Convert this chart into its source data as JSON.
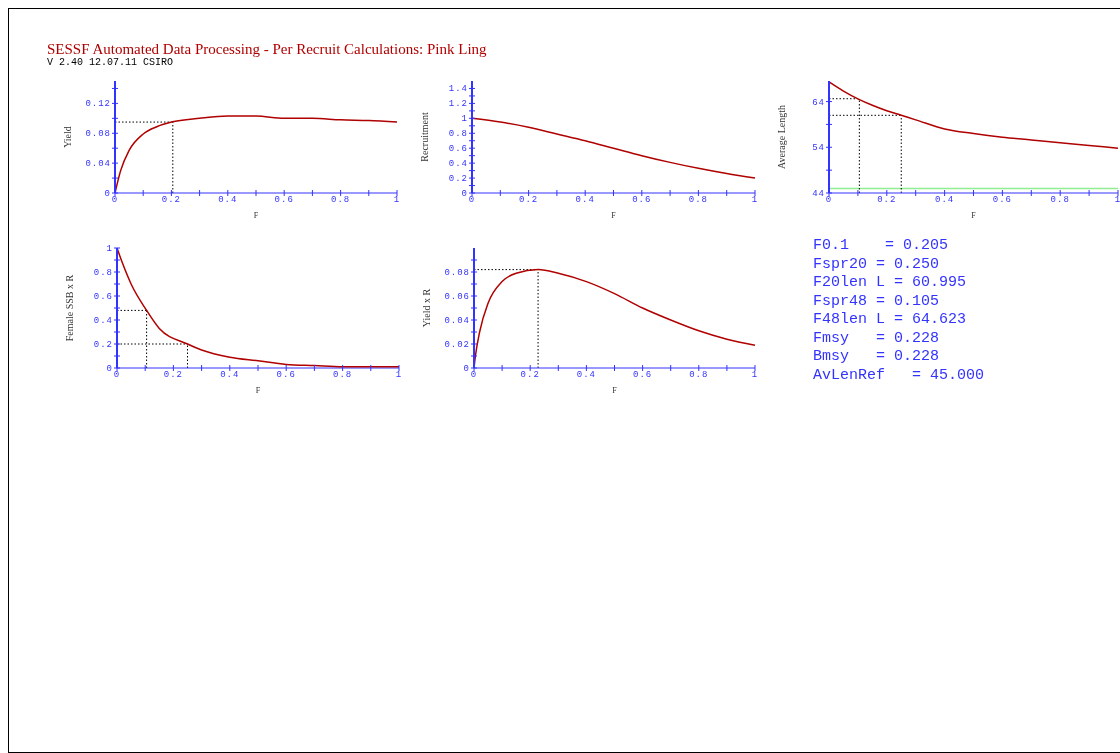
{
  "chart_data": [
    {
      "type": "line",
      "title": "SESSF Automated Data Processing - Per Recruit Calculations: Pink Ling",
      "subtitle": "V 2.40 12.07.11 CSIRO",
      "xlabel": "F",
      "ylabel": "Yield",
      "color": "#b00000",
      "x": [
        0,
        0.02,
        0.05,
        0.1,
        0.15,
        0.2,
        0.3,
        0.4,
        0.5,
        0.6,
        0.7,
        0.8,
        0.9,
        1
      ],
      "values": [
        0,
        0.03,
        0.057,
        0.079,
        0.089,
        0.095,
        0.1,
        0.103,
        0.103,
        0.1,
        0.1,
        0.098,
        0.097,
        0.095
      ],
      "xlim": [
        0,
        1
      ],
      "ylim": [
        0,
        0.15
      ],
      "xticks": [
        0,
        {
          "value": 0.1,
          "label": null
        },
        0.2,
        {
          "value": 0.3,
          "label": null
        },
        0.4,
        {
          "value": 0.5,
          "label": null
        },
        0.6,
        {
          "value": 0.7,
          "label": null
        },
        0.8,
        {
          "value": 0.9,
          "label": null
        },
        1
      ],
      "yticks": [
        0,
        {
          "value": 0.02,
          "label": null
        },
        0.04,
        {
          "value": 0.06,
          "label": null
        },
        0.08,
        {
          "value": 0.1,
          "label": null
        },
        0.12,
        {
          "value": 0.14,
          "label": null
        }
      ],
      "ref_lines": [
        {
          "axis": "x",
          "value": 0.205,
          "color": "#000000",
          "line_style": "dotted"
        },
        {
          "axis": "y",
          "value": 0.095,
          "color": "#000000",
          "line_style": "dotted"
        }
      ]
    },
    {
      "type": "line",
      "xlabel": "F",
      "ylabel": "Recruitment",
      "color": "#b00000",
      "x": [
        0,
        0.1,
        0.2,
        0.3,
        0.4,
        0.5,
        0.6,
        0.7,
        0.8,
        0.9,
        1
      ],
      "values": [
        1,
        0.95,
        0.88,
        0.79,
        0.7,
        0.6,
        0.5,
        0.41,
        0.33,
        0.26,
        0.2
      ],
      "xlim": [
        0,
        1
      ],
      "ylim": [
        0,
        1.5
      ],
      "xticks": [
        0,
        {
          "value": 0.1,
          "label": null
        },
        0.2,
        {
          "value": 0.3,
          "label": null
        },
        0.4,
        {
          "value": 0.5,
          "label": null
        },
        0.6,
        {
          "value": 0.7,
          "label": null
        },
        0.8,
        {
          "value": 0.9,
          "label": null
        },
        1
      ],
      "yticks": [
        0,
        {
          "value": 0.1,
          "label": null
        },
        0.2,
        {
          "value": 0.3,
          "label": null
        },
        0.4,
        {
          "value": 0.5,
          "label": null
        },
        0.6,
        {
          "value": 0.7,
          "label": null
        },
        0.8,
        {
          "value": 0.9,
          "label": null
        },
        1,
        {
          "value": 1.1,
          "label": null
        },
        1.2,
        {
          "value": 1.3,
          "label": null
        },
        1.4
      ]
    },
    {
      "type": "line",
      "xlabel": "F",
      "ylabel": "Average Length",
      "color": "#b00000",
      "x": [
        0,
        0.05,
        0.1,
        0.15,
        0.2,
        0.25,
        0.3,
        0.4,
        0.5,
        0.6,
        0.7,
        0.8,
        0.9,
        1
      ],
      "values": [
        68.3,
        66.3,
        64.6,
        63.2,
        62,
        61,
        60,
        58,
        57,
        56.2,
        55.6,
        55,
        54.4,
        53.8
      ],
      "xlim": [
        0,
        1
      ],
      "ylim": [
        44,
        68.5
      ],
      "xticks": [
        0,
        {
          "value": 0.1,
          "label": null
        },
        0.2,
        {
          "value": 0.3,
          "label": null
        },
        0.4,
        {
          "value": 0.5,
          "label": null
        },
        0.6,
        {
          "value": 0.7,
          "label": null
        },
        0.8,
        {
          "value": 0.9,
          "label": null
        },
        1
      ],
      "yticks": [
        44,
        {
          "value": 49,
          "label": null
        },
        54,
        {
          "value": 59,
          "label": null
        },
        64
      ],
      "ref_lines": [
        {
          "axis": "y",
          "value": 45,
          "color": "#90ee90",
          "line_style": "solid"
        },
        {
          "axis": "x",
          "value": 0.105,
          "color": "#000000",
          "line_style": "dotted"
        },
        {
          "axis": "y",
          "value": 64.623,
          "color": "#000000",
          "line_style": "dotted"
        },
        {
          "axis": "x",
          "value": 0.25,
          "color": "#000000",
          "line_style": "dotted"
        },
        {
          "axis": "y",
          "value": 60.995,
          "color": "#000000",
          "line_style": "dotted"
        }
      ]
    },
    {
      "type": "line",
      "xlabel": "F",
      "ylabel": "Female SSB x R",
      "color": "#b00000",
      "x": [
        0,
        0.02,
        0.05,
        0.105,
        0.15,
        0.25,
        0.3,
        0.4,
        0.5,
        0.6,
        0.7,
        0.8,
        0.9,
        1
      ],
      "values": [
        1,
        0.87,
        0.7,
        0.48,
        0.33,
        0.2,
        0.15,
        0.09,
        0.06,
        0.03,
        0.02,
        0.01,
        0.01,
        0.01
      ],
      "xlim": [
        0,
        1
      ],
      "ylim": [
        0,
        1
      ],
      "xticks": [
        0,
        {
          "value": 0.1,
          "label": null
        },
        0.2,
        {
          "value": 0.3,
          "label": null
        },
        0.4,
        {
          "value": 0.5,
          "label": null
        },
        0.6,
        {
          "value": 0.7,
          "label": null
        },
        0.8,
        {
          "value": 0.9,
          "label": null
        },
        1
      ],
      "yticks": [
        0,
        {
          "value": 0.1,
          "label": null
        },
        0.2,
        {
          "value": 0.3,
          "label": null
        },
        0.4,
        {
          "value": 0.5,
          "label": null
        },
        0.6,
        {
          "value": 0.7,
          "label": null
        },
        0.8,
        {
          "value": 0.9,
          "label": null
        },
        1
      ],
      "ref_lines": [
        {
          "axis": "x",
          "value": 0.105,
          "color": "#000000",
          "line_style": "dotted"
        },
        {
          "axis": "y",
          "value": 0.48,
          "color": "#000000",
          "line_style": "dotted"
        },
        {
          "axis": "x",
          "value": 0.25,
          "color": "#000000",
          "line_style": "dotted"
        },
        {
          "axis": "y",
          "value": 0.2,
          "color": "#000000",
          "line_style": "dotted"
        }
      ]
    },
    {
      "type": "line",
      "xlabel": "F",
      "ylabel": "Yield x R",
      "color": "#b00000",
      "x": [
        0,
        0.005,
        0.02,
        0.05,
        0.1,
        0.15,
        0.228,
        0.3,
        0.4,
        0.5,
        0.6,
        0.7,
        0.8,
        0.9,
        1
      ],
      "values": [
        0,
        0.01,
        0.03,
        0.054,
        0.072,
        0.079,
        0.082,
        0.079,
        0.072,
        0.062,
        0.05,
        0.04,
        0.031,
        0.024,
        0.019
      ],
      "xlim": [
        0,
        1
      ],
      "ylim": [
        0,
        0.1
      ],
      "xticks": [
        0,
        {
          "value": 0.1,
          "label": null
        },
        0.2,
        {
          "value": 0.3,
          "label": null
        },
        0.4,
        {
          "value": 0.5,
          "label": null
        },
        0.6,
        {
          "value": 0.7,
          "label": null
        },
        0.8,
        {
          "value": 0.9,
          "label": null
        },
        1
      ],
      "yticks": [
        0,
        {
          "value": 0.01,
          "label": null
        },
        0.02,
        {
          "value": 0.03,
          "label": null
        },
        0.04,
        {
          "value": 0.05,
          "label": null
        },
        0.06,
        {
          "value": 0.07,
          "label": null
        },
        0.08,
        {
          "value": 0.09,
          "label": null
        }
      ],
      "ref_lines": [
        {
          "axis": "x",
          "value": 0.228,
          "color": "#000000",
          "line_style": "dotted"
        },
        {
          "axis": "y",
          "value": 0.082,
          "color": "#000000",
          "line_style": "dotted"
        }
      ]
    },
    {
      "type": "other",
      "annotations": [
        "F0.1    = 0.205",
        "Fspr20 = 0.250",
        "F20len L = 60.995",
        "Fspr48 = 0.105",
        "F48len L = 64.623",
        "Fmsy   = 0.228",
        "Bmsy   = 0.228",
        "AvLenRef   = 45.000"
      ]
    }
  ]
}
